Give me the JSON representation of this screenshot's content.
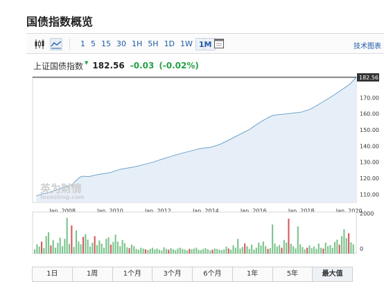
{
  "page": {
    "title": "国债指数概览"
  },
  "toolbar": {
    "periods": [
      "1",
      "5",
      "15",
      "30",
      "1H",
      "5H",
      "1D",
      "1W",
      "1M"
    ],
    "active_period": "1M",
    "tech_chart_link": "技术图表",
    "icons": [
      "candlestick-icon",
      "line-chart-icon",
      "calendar-grid-icon"
    ]
  },
  "quote": {
    "name": "上证国债指数",
    "price": "182.56",
    "change": "-0.03",
    "change_pct": "(-0.02%)",
    "change_color": "#26a147"
  },
  "watermark": {
    "cn": "英为财情",
    "en": "Investing.com"
  },
  "ranges": [
    "1日",
    "1周",
    "1个月",
    "3个月",
    "6个月",
    "1年",
    "5年",
    "最大值"
  ],
  "active_range": "最大值",
  "colors": {
    "line": "#6fa2cc",
    "area": "#e6eff7",
    "vol_up": "#7cc48d",
    "vol_down": "#d05c60"
  },
  "chart_data": {
    "type": "area",
    "x_ticks": [
      "Jan, 2008",
      "Jan, 2010",
      "Jan, 2012",
      "Jan, 2014",
      "Jan, 2016",
      "Jan, 2018",
      "Jan, 2020"
    ],
    "y_ticks": [
      110.0,
      120.0,
      130.0,
      140.0,
      150.0,
      160.0,
      170.0
    ],
    "y_tick_labels": [
      "110.00",
      "120.00",
      "130.00",
      "140.00",
      "150.00",
      "160.00",
      "170.00"
    ],
    "ylim": [
      105,
      183
    ],
    "last_value_label": "182.56",
    "series": [
      {
        "x": [
          2006.9,
          2007.1,
          2007.4,
          2007.7,
          2008.0,
          2008.2,
          2008.4,
          2008.6,
          2008.75,
          2008.9,
          2009.1,
          2009.4,
          2009.7,
          2010.0,
          2010.4,
          2010.8,
          2011.0,
          2011.4,
          2011.8,
          2012.2,
          2012.6,
          2013.0,
          2013.4,
          2013.8,
          2014.2,
          2014.6,
          2015.0,
          2015.4,
          2015.8,
          2016.0,
          2016.3,
          2016.6,
          2016.8,
          2017.1,
          2017.4,
          2017.7,
          2018.0,
          2018.4,
          2018.8,
          2019.2,
          2019.6,
          2020.0,
          2020.3
        ],
        "y": [
          109.0,
          110.0,
          111.0,
          112.5,
          114.0,
          114.8,
          116.0,
          119.0,
          120.8,
          121.3,
          121.0,
          122.0,
          122.8,
          123.5,
          125.5,
          126.5,
          127.0,
          128.5,
          130.0,
          132.0,
          133.8,
          135.5,
          137.0,
          138.5,
          139.2,
          141.0,
          144.0,
          147.0,
          150.0,
          152.0,
          155.0,
          157.5,
          159.0,
          159.5,
          160.0,
          160.5,
          161.0,
          163.0,
          166.5,
          170.0,
          174.0,
          178.0,
          182.56
        ]
      }
    ],
    "volume": {
      "ylim": [
        0,
        2000
      ],
      "y_ticks": [
        0,
        2000
      ],
      "y_tick_labels": [
        "0",
        "2000"
      ],
      "bars": [
        [
          220,
          1
        ],
        [
          480,
          1
        ],
        [
          360,
          1
        ],
        [
          620,
          0
        ],
        [
          280,
          1
        ],
        [
          900,
          1
        ],
        [
          1100,
          1
        ],
        [
          420,
          0
        ],
        [
          700,
          1
        ],
        [
          300,
          1
        ],
        [
          550,
          1
        ],
        [
          820,
          1
        ],
        [
          380,
          1
        ],
        [
          760,
          1
        ],
        [
          1850,
          1
        ],
        [
          500,
          1
        ],
        [
          1450,
          0
        ],
        [
          340,
          1
        ],
        [
          1200,
          1
        ],
        [
          620,
          1
        ],
        [
          480,
          1
        ],
        [
          860,
          0
        ],
        [
          1000,
          1
        ],
        [
          720,
          1
        ],
        [
          360,
          1
        ],
        [
          560,
          1
        ],
        [
          900,
          0
        ],
        [
          440,
          1
        ],
        [
          680,
          1
        ],
        [
          520,
          1
        ],
        [
          300,
          1
        ],
        [
          760,
          1
        ],
        [
          840,
          1
        ],
        [
          460,
          0
        ],
        [
          600,
          1
        ],
        [
          980,
          1
        ],
        [
          620,
          1
        ],
        [
          380,
          1
        ],
        [
          700,
          1
        ],
        [
          540,
          1
        ],
        [
          320,
          1
        ],
        [
          280,
          0
        ],
        [
          460,
          1
        ],
        [
          380,
          1
        ],
        [
          240,
          1
        ],
        [
          200,
          1
        ],
        [
          300,
          1
        ],
        [
          260,
          1
        ],
        [
          220,
          0
        ],
        [
          180,
          1
        ],
        [
          240,
          1
        ],
        [
          300,
          1
        ],
        [
          220,
          1
        ],
        [
          260,
          1
        ],
        [
          200,
          1
        ],
        [
          160,
          1
        ],
        [
          320,
          1
        ],
        [
          240,
          1
        ],
        [
          200,
          0
        ],
        [
          280,
          1
        ],
        [
          220,
          1
        ],
        [
          180,
          1
        ],
        [
          260,
          1
        ],
        [
          300,
          1
        ],
        [
          240,
          1
        ],
        [
          200,
          1
        ],
        [
          160,
          1
        ],
        [
          240,
          0
        ],
        [
          220,
          1
        ],
        [
          260,
          1
        ],
        [
          300,
          1
        ],
        [
          200,
          1
        ],
        [
          180,
          1
        ],
        [
          240,
          1
        ],
        [
          280,
          1
        ],
        [
          220,
          1
        ],
        [
          160,
          1
        ],
        [
          200,
          0
        ],
        [
          260,
          1
        ],
        [
          240,
          1
        ],
        [
          200,
          1
        ],
        [
          180,
          1
        ],
        [
          220,
          1
        ],
        [
          360,
          1
        ],
        [
          260,
          0
        ],
        [
          200,
          1
        ],
        [
          420,
          1
        ],
        [
          300,
          1
        ],
        [
          760,
          1
        ],
        [
          260,
          1
        ],
        [
          340,
          1
        ],
        [
          520,
          0
        ],
        [
          380,
          1
        ],
        [
          240,
          1
        ],
        [
          460,
          1
        ],
        [
          200,
          1
        ],
        [
          300,
          1
        ],
        [
          560,
          1
        ],
        [
          420,
          1
        ],
        [
          620,
          1
        ],
        [
          380,
          1
        ],
        [
          240,
          0
        ],
        [
          280,
          1
        ],
        [
          1500,
          1
        ],
        [
          520,
          1
        ],
        [
          360,
          1
        ],
        [
          440,
          1
        ],
        [
          300,
          0
        ],
        [
          700,
          1
        ],
        [
          560,
          1
        ],
        [
          1800,
          0
        ],
        [
          500,
          1
        ],
        [
          380,
          1
        ],
        [
          260,
          1
        ],
        [
          1400,
          1
        ],
        [
          480,
          1
        ],
        [
          340,
          1
        ],
        [
          220,
          1
        ],
        [
          300,
          0
        ],
        [
          420,
          1
        ],
        [
          280,
          1
        ],
        [
          360,
          1
        ],
        [
          240,
          1
        ],
        [
          520,
          1
        ],
        [
          300,
          1
        ],
        [
          260,
          0
        ],
        [
          560,
          1
        ],
        [
          380,
          1
        ],
        [
          440,
          1
        ],
        [
          300,
          1
        ],
        [
          600,
          1
        ],
        [
          720,
          1
        ],
        [
          460,
          0
        ],
        [
          900,
          1
        ],
        [
          1250,
          1
        ],
        [
          800,
          1
        ],
        [
          1050,
          0
        ],
        [
          580,
          1
        ],
        [
          480,
          1
        ]
      ]
    }
  }
}
